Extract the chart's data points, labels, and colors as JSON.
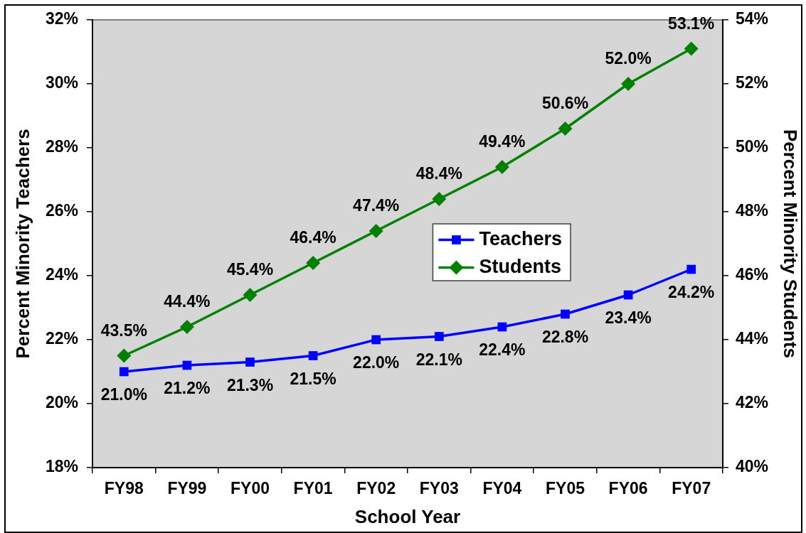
{
  "chart_data": {
    "type": "line",
    "xlabel": "School Year",
    "ylabel": "Percent Minority Teachers",
    "y2label": "Percent Minority Students",
    "categories": [
      "FY98",
      "FY99",
      "FY00",
      "FY01",
      "FY02",
      "FY03",
      "FY04",
      "FY05",
      "FY06",
      "FY07"
    ],
    "series": [
      {
        "name": "Teachers",
        "color": "#0000ff",
        "marker": "square",
        "values": [
          21.0,
          21.2,
          21.3,
          21.5,
          22.0,
          22.1,
          22.4,
          22.8,
          23.4,
          24.2
        ],
        "value_labels": [
          "21.0%",
          "21.2%",
          "21.3%",
          "21.5%",
          "22.0%",
          "22.1%",
          "22.4%",
          "22.8%",
          "23.4%",
          "24.2%"
        ]
      },
      {
        "name": "Students",
        "color": "#008000",
        "marker": "diamond",
        "axis": "y2",
        "values": [
          43.5,
          44.4,
          45.4,
          46.4,
          47.4,
          48.4,
          49.4,
          50.6,
          52.0,
          53.1
        ],
        "value_labels": [
          "43.5%",
          "44.4%",
          "45.4%",
          "46.4%",
          "47.4%",
          "48.4%",
          "49.4%",
          "50.6%",
          "52.0%",
          "53.1%"
        ]
      }
    ],
    "ylim": [
      18,
      32
    ],
    "yticks": [
      {
        "value": 18,
        "label": "18%"
      },
      {
        "value": 20,
        "label": "20%"
      },
      {
        "value": 22,
        "label": "22%"
      },
      {
        "value": 24,
        "label": "24%"
      },
      {
        "value": 26,
        "label": "26%"
      },
      {
        "value": 28,
        "label": "28%"
      },
      {
        "value": 30,
        "label": "30%"
      },
      {
        "value": 32,
        "label": "32%"
      }
    ],
    "y2lim": [
      40,
      54
    ],
    "y2ticks": [
      {
        "value": 40,
        "label": "40%"
      },
      {
        "value": 42,
        "label": "42%"
      },
      {
        "value": 44,
        "label": "44%"
      },
      {
        "value": 46,
        "label": "46%"
      },
      {
        "value": 48,
        "label": "48%"
      },
      {
        "value": 50,
        "label": "50%"
      },
      {
        "value": 52,
        "label": "52%"
      },
      {
        "value": 54,
        "label": "54%"
      }
    ],
    "legend": "right"
  }
}
